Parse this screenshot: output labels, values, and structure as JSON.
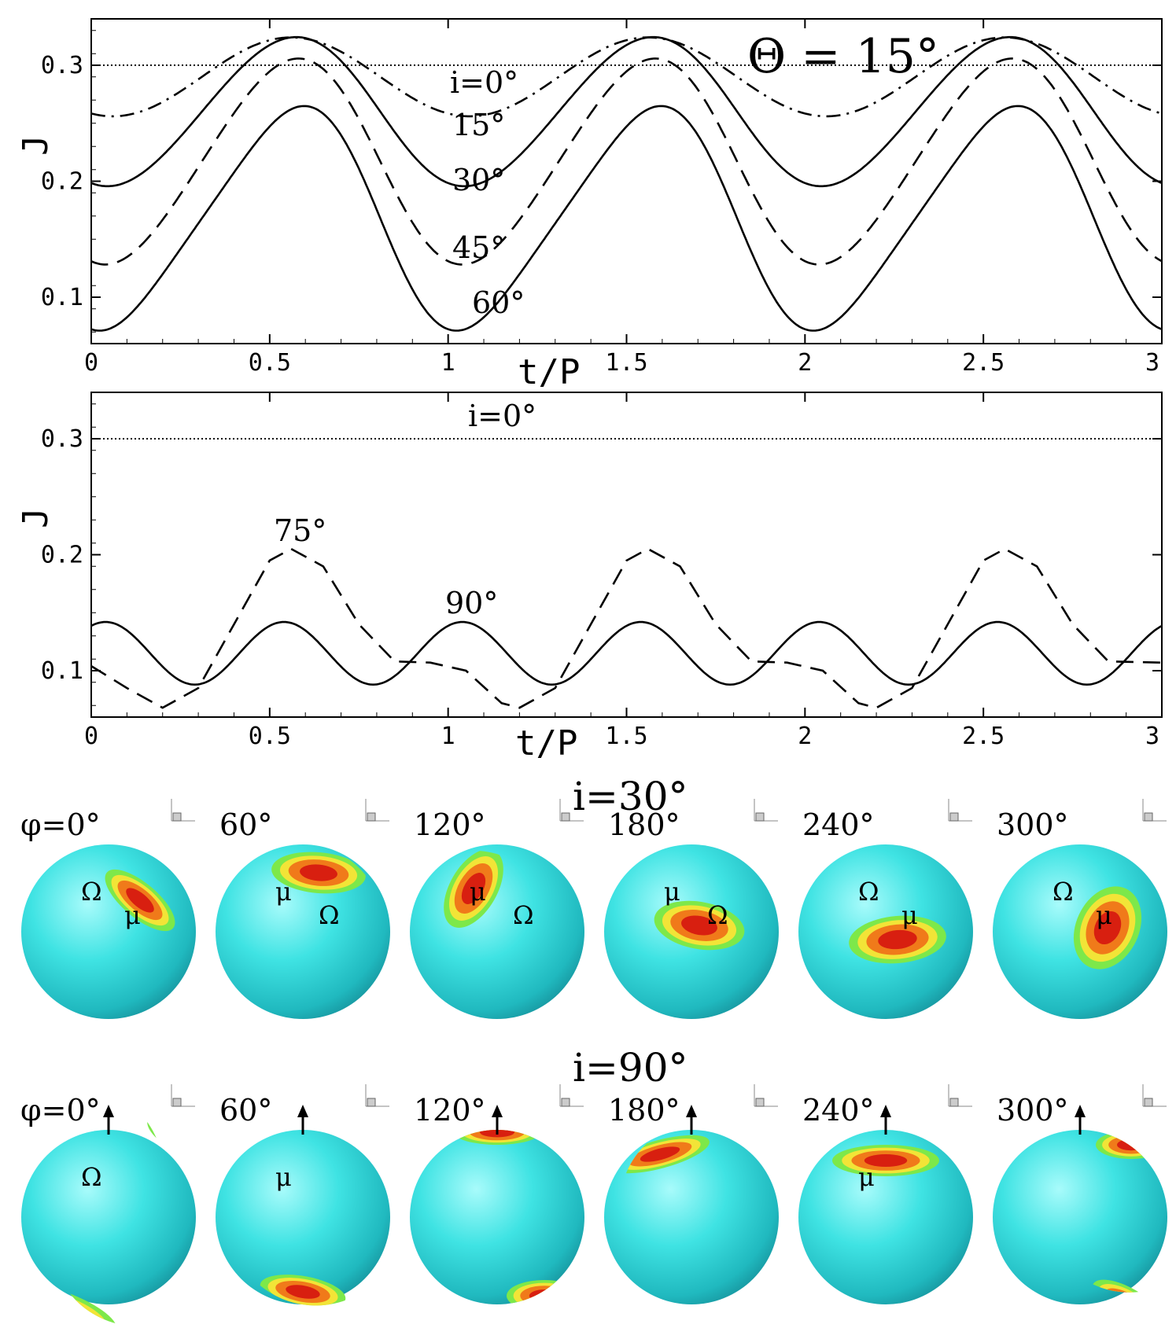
{
  "chart_data": [
    {
      "type": "line",
      "title": "Θ = 15°",
      "xlabel": "t/P",
      "ylabel": "J",
      "xlim": [
        0,
        3
      ],
      "ylim": [
        0.06,
        0.34
      ],
      "xticks": [
        "0",
        "0.5",
        "1",
        "1.5",
        "2",
        "2.5",
        "3"
      ],
      "yticks": [
        "0.1",
        "0.2",
        "0.3"
      ],
      "series": [
        {
          "name": "i=0°",
          "style": "dotted",
          "label": "i=0°",
          "mean": 0.3,
          "amplitude": 0.0,
          "phase_max": 0.56,
          "harmonic2": 0.0
        },
        {
          "name": "15°",
          "style": "dashdot",
          "label": "15°",
          "mean": 0.29,
          "amplitude": 0.034,
          "phase_max": 0.56,
          "harmonic2": 0.0
        },
        {
          "name": "30°",
          "style": "solid",
          "label": "30°",
          "mean": 0.26,
          "amplitude": 0.064,
          "phase_max": 0.56,
          "harmonic2": 0.003
        },
        {
          "name": "45°",
          "style": "dashed",
          "label": "45°",
          "mean": 0.217,
          "amplitude": 0.088,
          "phase_max": 0.56,
          "harmonic2": 0.006
        },
        {
          "name": "60°",
          "style": "solid",
          "label": "60°",
          "mean": 0.168,
          "amplitude": 0.094,
          "phase_max": 0.56,
          "harmonic2": 0.012
        }
      ],
      "annotations": [
        "i=0°",
        "15°",
        "30°",
        "45°",
        "60°"
      ]
    },
    {
      "type": "line",
      "xlabel": "t/P",
      "ylabel": "J",
      "xlim": [
        0,
        3
      ],
      "ylim": [
        0.06,
        0.34
      ],
      "xticks": [
        "0",
        "0.5",
        "1",
        "1.5",
        "2",
        "2.5",
        "3"
      ],
      "yticks": [
        "0.1",
        "0.2",
        "0.3"
      ],
      "series": [
        {
          "name": "i=0°",
          "style": "dotted",
          "label": "i=0°",
          "points": [
            [
              0,
              0.3
            ],
            [
              3,
              0.3
            ]
          ]
        },
        {
          "name": "75°",
          "style": "dashed",
          "label": "75°",
          "points": [
            [
              0,
              0.104
            ],
            [
              0.1,
              0.085
            ],
            [
              0.2,
              0.068
            ],
            [
              0.3,
              0.085
            ],
            [
              0.4,
              0.14
            ],
            [
              0.5,
              0.195
            ],
            [
              0.56,
              0.205
            ],
            [
              0.65,
              0.19
            ],
            [
              0.75,
              0.14
            ],
            [
              0.85,
              0.108
            ],
            [
              0.95,
              0.107
            ],
            [
              1.05,
              0.1
            ],
            [
              1.15,
              0.072
            ],
            [
              1.2,
              0.068
            ],
            [
              1.3,
              0.085
            ],
            [
              1.4,
              0.14
            ],
            [
              1.5,
              0.195
            ],
            [
              1.56,
              0.205
            ],
            [
              1.65,
              0.19
            ],
            [
              1.75,
              0.14
            ],
            [
              1.85,
              0.108
            ],
            [
              1.95,
              0.107
            ],
            [
              2.05,
              0.1
            ],
            [
              2.15,
              0.072
            ],
            [
              2.2,
              0.068
            ],
            [
              2.3,
              0.085
            ],
            [
              2.4,
              0.14
            ],
            [
              2.5,
              0.195
            ],
            [
              2.56,
              0.205
            ],
            [
              2.65,
              0.19
            ],
            [
              2.75,
              0.14
            ],
            [
              2.85,
              0.108
            ],
            [
              3,
              0.107
            ]
          ]
        },
        {
          "name": "90°",
          "style": "solid",
          "label": "90°",
          "mean": 0.115,
          "amplitude": 0.027,
          "phase_max": 0.04,
          "frequency": 2
        }
      ],
      "annotations": [
        "i=0°",
        "75°",
        "90°"
      ]
    }
  ],
  "spheres": {
    "row1": {
      "title": "i=30°",
      "panels": [
        {
          "phi": "φ=0°",
          "symbols": [
            "Ω",
            "μ"
          ]
        },
        {
          "phi": "60°",
          "symbols": [
            "μ",
            "Ω"
          ]
        },
        {
          "phi": "120°",
          "symbols": [
            "μ",
            "Ω"
          ]
        },
        {
          "phi": "180°",
          "symbols": [
            "μ",
            "Ω"
          ]
        },
        {
          "phi": "240°",
          "symbols": [
            "Ω",
            "μ"
          ]
        },
        {
          "phi": "300°",
          "symbols": [
            "Ω",
            "μ"
          ]
        }
      ]
    },
    "row2": {
      "title": "i=90°",
      "panels": [
        {
          "phi": "φ=0°",
          "symbols": [
            "Ω"
          ]
        },
        {
          "phi": "60°",
          "symbols": [
            "μ"
          ]
        },
        {
          "phi": "120°",
          "symbols": []
        },
        {
          "phi": "180°",
          "symbols": []
        },
        {
          "phi": "240°",
          "symbols": [
            "μ"
          ]
        },
        {
          "phi": "300°",
          "symbols": []
        }
      ]
    }
  },
  "colors": {
    "sphere": "#33e0e0",
    "spot_outer": "#7de84a",
    "spot_mid": "#f2e437",
    "spot_inner": "#f07a1a",
    "spot_core": "#d81f10"
  }
}
